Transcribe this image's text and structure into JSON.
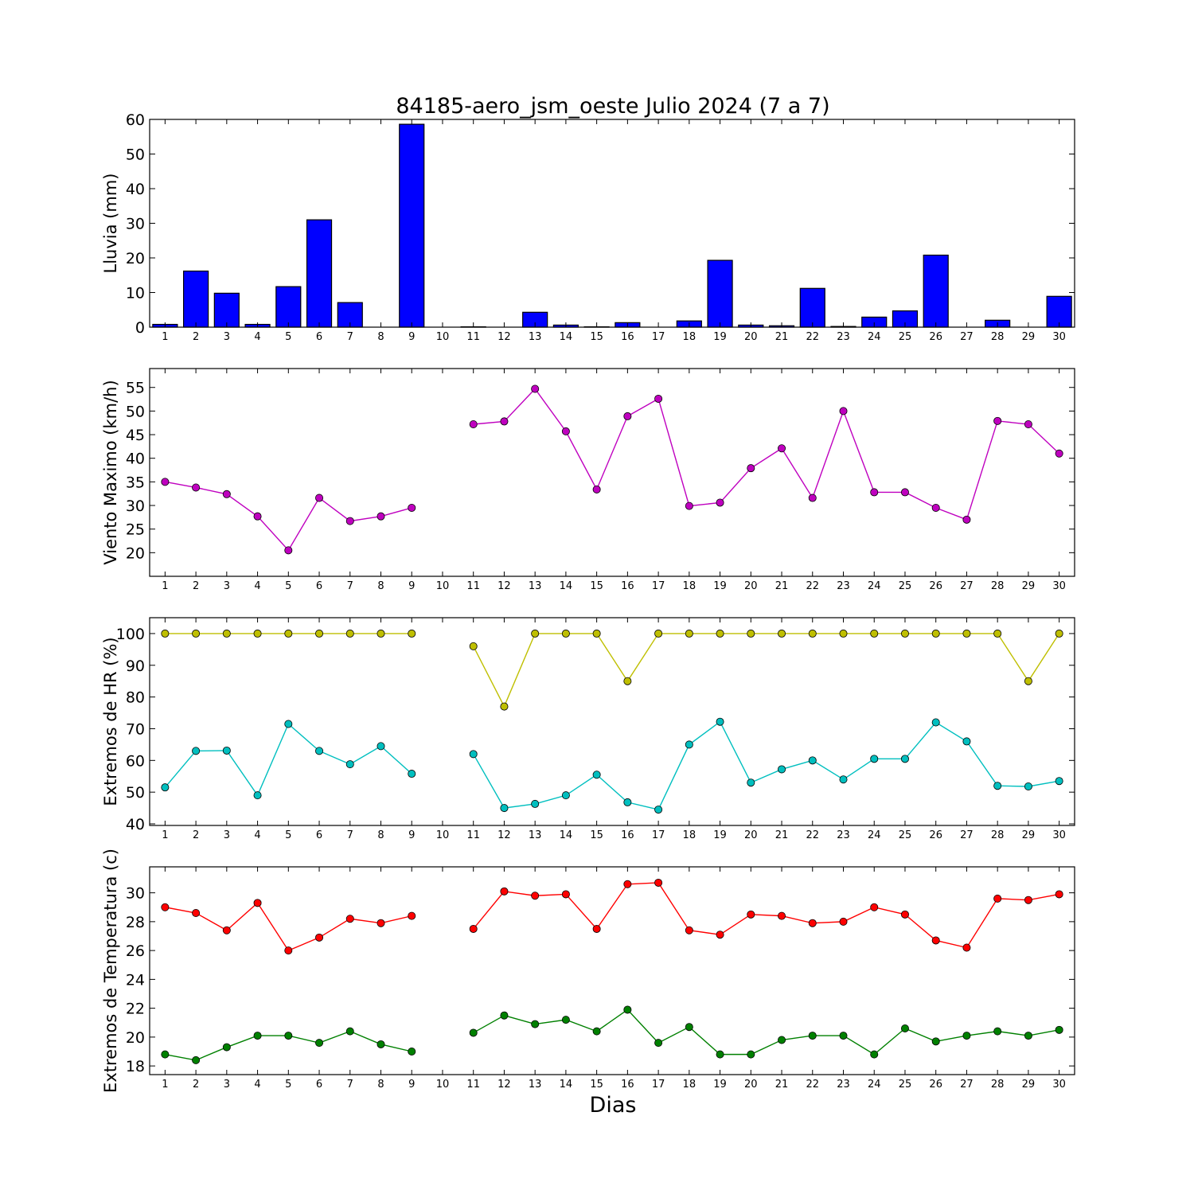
{
  "chart_data": [
    {
      "type": "bar",
      "title": "84185-aero_jsm_oeste Julio 2024  (7 a 7)",
      "ylabel": "Lluvia (mm)",
      "xlabel": "",
      "ylim": [
        0,
        60
      ],
      "yticks": [
        0,
        10,
        20,
        30,
        40,
        50,
        60
      ],
      "categories": [
        "1",
        "2",
        "3",
        "4",
        "5",
        "6",
        "7",
        "8",
        "9",
        "10",
        "11",
        "12",
        "13",
        "14",
        "15",
        "16",
        "17",
        "18",
        "19",
        "20",
        "21",
        "22",
        "23",
        "24",
        "25",
        "26",
        "27",
        "28",
        "29",
        "30"
      ],
      "values": [
        0.8,
        16.2,
        9.8,
        0.8,
        11.7,
        31.0,
        7.1,
        0,
        58.6,
        0,
        0.1,
        0,
        4.3,
        0.6,
        0.1,
        1.3,
        0,
        1.8,
        19.3,
        0.6,
        0.4,
        11.2,
        0.2,
        2.9,
        4.7,
        20.8,
        0,
        2.0,
        0,
        8.9
      ],
      "color": "#0000ff",
      "grid": false
    },
    {
      "type": "line",
      "ylabel": "Viento Maximo (km/h)",
      "xlabel": "",
      "ylim": [
        15,
        59
      ],
      "yticks": [
        20,
        25,
        30,
        35,
        40,
        45,
        50,
        55
      ],
      "categories": [
        "1",
        "2",
        "3",
        "4",
        "5",
        "6",
        "7",
        "8",
        "9",
        "10",
        "11",
        "12",
        "13",
        "14",
        "15",
        "16",
        "17",
        "18",
        "19",
        "20",
        "21",
        "22",
        "23",
        "24",
        "25",
        "26",
        "27",
        "28",
        "29",
        "30"
      ],
      "series": [
        {
          "values": [
            35.0,
            33.8,
            32.4,
            27.7,
            20.5,
            31.6,
            26.7,
            27.7,
            29.5,
            null,
            47.2,
            47.8,
            54.7,
            45.7,
            33.4,
            48.9,
            52.6,
            29.9,
            30.6,
            37.9,
            42.1,
            31.6,
            50.0,
            32.8,
            32.8,
            29.5,
            27.0,
            47.9,
            47.2,
            41.0
          ],
          "color": "#bf00bf"
        }
      ],
      "grid": false
    },
    {
      "type": "line",
      "ylabel": "Extremos de HR (%)",
      "xlabel": "",
      "ylim": [
        39.5,
        105
      ],
      "yticks": [
        40,
        50,
        60,
        70,
        80,
        90,
        100
      ],
      "categories": [
        "1",
        "2",
        "3",
        "4",
        "5",
        "6",
        "7",
        "8",
        "9",
        "10",
        "11",
        "12",
        "13",
        "14",
        "15",
        "16",
        "17",
        "18",
        "19",
        "20",
        "21",
        "22",
        "23",
        "24",
        "25",
        "26",
        "27",
        "28",
        "29",
        "30"
      ],
      "series": [
        {
          "values": [
            100,
            100,
            100,
            100,
            100,
            100,
            100,
            100,
            100,
            null,
            96,
            77,
            100,
            100,
            100,
            85,
            100,
            100,
            100,
            100,
            100,
            100,
            100,
            100,
            100,
            100,
            100,
            100,
            85,
            100
          ],
          "color": "#bfbf00"
        },
        {
          "values": [
            51.5,
            63.0,
            63.1,
            49.0,
            71.5,
            63.0,
            58.8,
            64.5,
            55.8,
            null,
            62.0,
            45.0,
            46.3,
            49.0,
            55.5,
            46.8,
            44.5,
            65.0,
            72.2,
            53.0,
            57.2,
            60.0,
            54.0,
            60.5,
            60.5,
            72.0,
            66.0,
            52.0,
            51.8,
            53.5
          ],
          "color": "#00bfbf"
        }
      ],
      "grid": false
    },
    {
      "type": "line",
      "ylabel": "Extremos de Temperatura (c)",
      "xlabel": "Dias",
      "ylim": [
        17.4,
        31.8
      ],
      "yticks": [
        18,
        20,
        22,
        24,
        26,
        28,
        30
      ],
      "categories": [
        "1",
        "2",
        "3",
        "4",
        "5",
        "6",
        "7",
        "8",
        "9",
        "10",
        "11",
        "12",
        "13",
        "14",
        "15",
        "16",
        "17",
        "18",
        "19",
        "20",
        "21",
        "22",
        "23",
        "24",
        "25",
        "26",
        "27",
        "28",
        "29",
        "30"
      ],
      "series": [
        {
          "values": [
            29.0,
            28.6,
            27.4,
            29.3,
            26.0,
            26.9,
            28.2,
            27.9,
            28.4,
            null,
            27.5,
            30.1,
            29.8,
            29.9,
            27.5,
            30.6,
            30.7,
            27.4,
            27.1,
            28.5,
            28.4,
            27.9,
            28.0,
            29.0,
            28.5,
            26.7,
            26.2,
            29.6,
            29.5,
            29.9
          ],
          "color": "#ff0000"
        },
        {
          "values": [
            18.8,
            18.4,
            19.3,
            20.1,
            20.1,
            19.6,
            20.4,
            19.5,
            19.0,
            null,
            20.3,
            21.5,
            20.9,
            21.2,
            20.4,
            21.9,
            19.6,
            20.7,
            18.8,
            18.8,
            19.8,
            20.1,
            20.1,
            18.8,
            20.6,
            19.7,
            20.1,
            20.4,
            20.1,
            20.5
          ],
          "color": "#008000"
        }
      ],
      "grid": false
    }
  ]
}
